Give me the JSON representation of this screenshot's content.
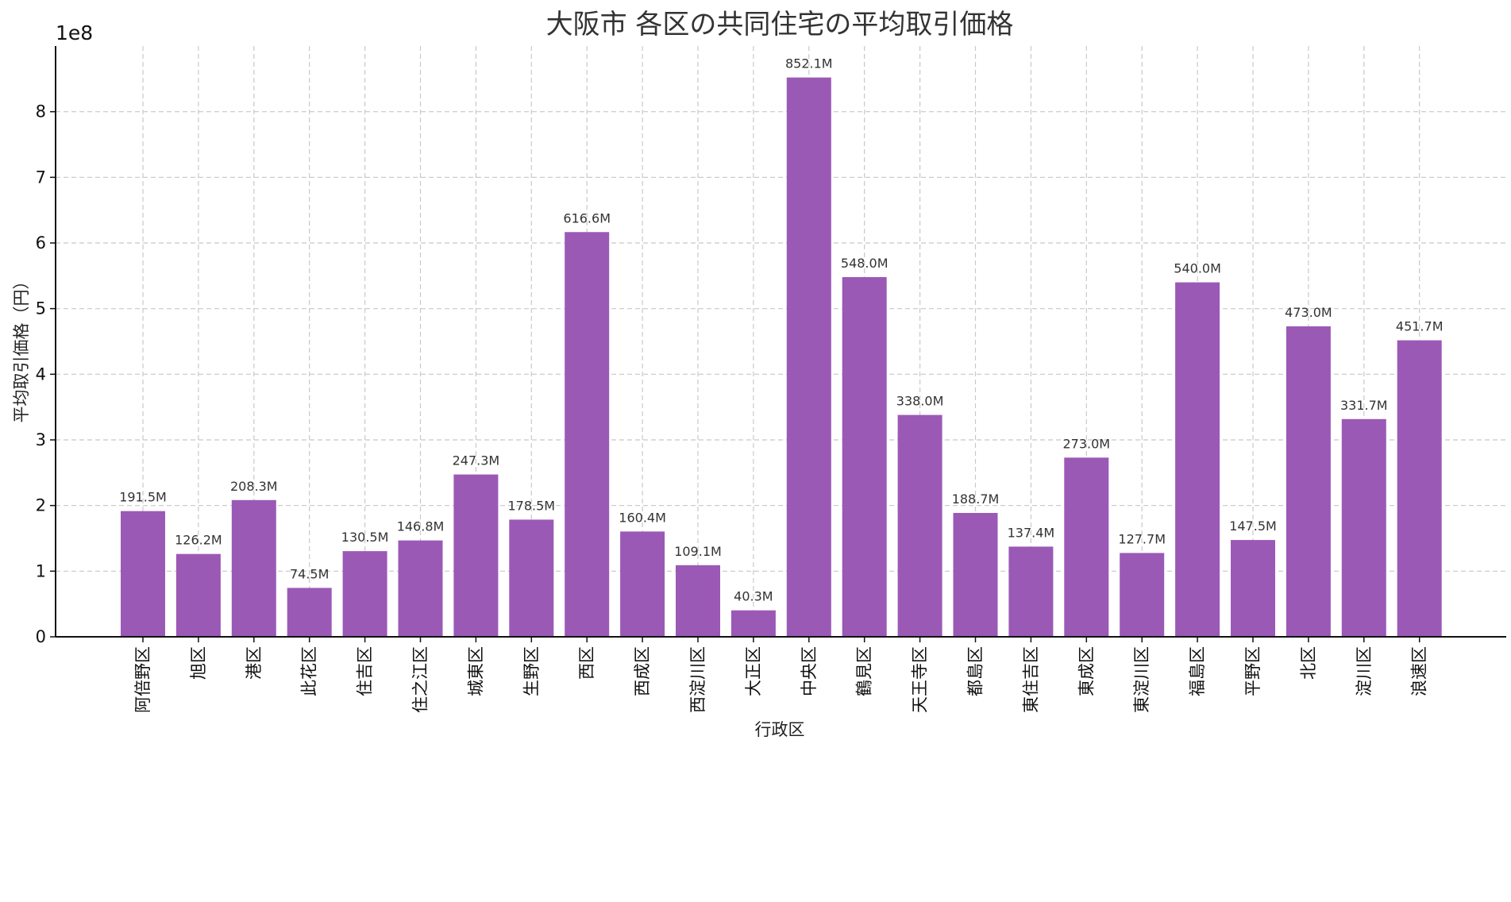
{
  "chart_data": {
    "type": "bar",
    "title": "大阪市 各区の共同住宅の平均取引価格",
    "xlabel": "行政区",
    "ylabel": "平均取引価格（円）",
    "y_offset_label": "1e8",
    "ylim": [
      0,
      900000000
    ],
    "yticks": [
      0,
      100000000,
      200000000,
      300000000,
      400000000,
      500000000,
      600000000,
      700000000,
      800000000
    ],
    "ytick_labels": [
      "0",
      "1",
      "2",
      "3",
      "4",
      "5",
      "6",
      "7",
      "8"
    ],
    "grid": true,
    "bar_color": "#9b59b6",
    "categories": [
      "阿倍野区",
      "旭区",
      "港区",
      "此花区",
      "住吉区",
      "住之江区",
      "城東区",
      "生野区",
      "西区",
      "西成区",
      "西淀川区",
      "大正区",
      "中央区",
      "鶴見区",
      "天王寺区",
      "都島区",
      "東住吉区",
      "東成区",
      "東淀川区",
      "福島区",
      "平野区",
      "北区",
      "淀川区",
      "浪速区"
    ],
    "values": [
      191500000,
      126200000,
      208300000,
      74500000,
      130500000,
      146800000,
      247300000,
      178500000,
      616600000,
      160400000,
      109100000,
      40300000,
      852100000,
      548000000,
      338000000,
      188700000,
      137400000,
      273000000,
      127700000,
      540000000,
      147500000,
      473000000,
      331700000,
      451700000
    ],
    "value_labels": [
      "191.5M",
      "126.2M",
      "208.3M",
      "74.5M",
      "130.5M",
      "146.8M",
      "247.3M",
      "178.5M",
      "616.6M",
      "160.4M",
      "109.1M",
      "40.3M",
      "852.1M",
      "548.0M",
      "338.0M",
      "188.7M",
      "137.4M",
      "273.0M",
      "127.7M",
      "540.0M",
      "147.5M",
      "473.0M",
      "331.7M",
      "451.7M"
    ]
  }
}
